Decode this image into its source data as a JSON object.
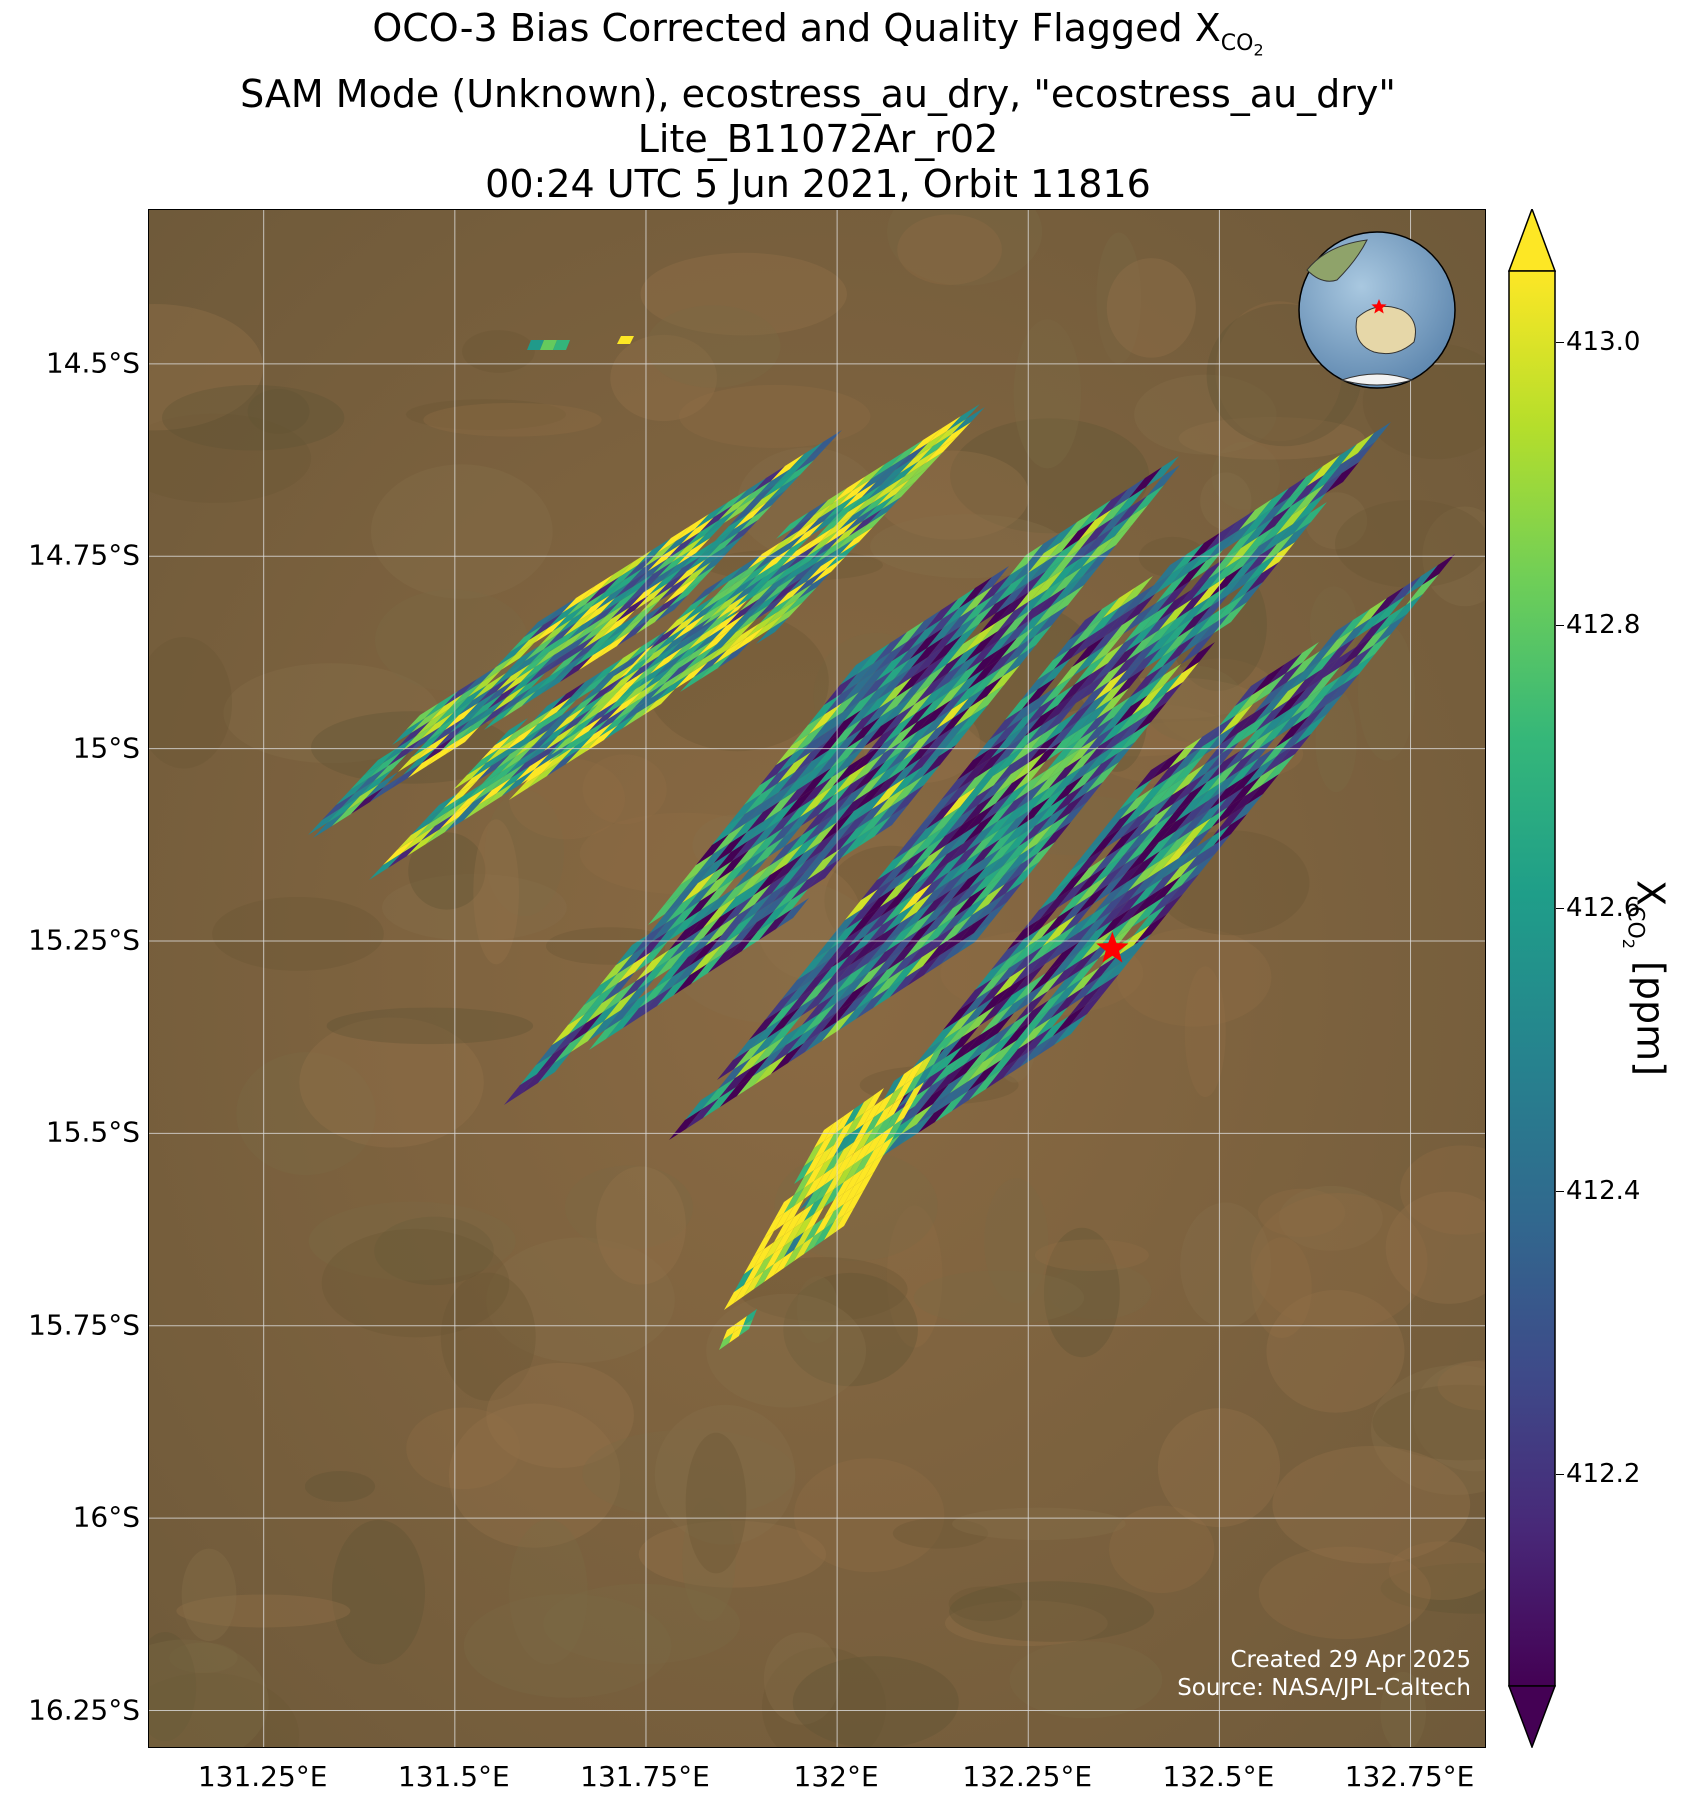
{
  "title": {
    "line1_prefix": "OCO-3 Bias Corrected and Quality Flagged X",
    "line1_sub": "CO",
    "line1_sub2": "2",
    "line2": "SAM Mode (Unknown), ecostress_au_dry, \"ecostress_au_dry\"",
    "line3": "Lite_B11072Ar_r02",
    "line4": "00:24 UTC 5 Jun 2021, Orbit 11816"
  },
  "map": {
    "lon_range": [
      131.1,
      132.85
    ],
    "lat_range": [
      -16.3,
      -14.3
    ],
    "lon_ticks": [
      "131.25°E",
      "131.5°E",
      "131.75°E",
      "132°E",
      "132.25°E",
      "132.5°E",
      "132.75°E"
    ],
    "lat_ticks": [
      "14.5°S",
      "14.75°S",
      "15°S",
      "15.25°S",
      "15.5°S",
      "15.75°S",
      "16°S",
      "16.25°S"
    ],
    "target_marker": {
      "lon": 132.36,
      "lat": -15.26,
      "color": "#ff0000",
      "icon": "star-icon"
    },
    "inset_globe": {
      "icon": "globe-icon",
      "marker_icon": "star-icon"
    },
    "colors": {
      "terrain": "#7d6440",
      "grid": "#dddddd"
    }
  },
  "colorbar": {
    "label_prefix": "X",
    "label_sub": "CO",
    "label_sub2": "2",
    "label_suffix": " [ppm]",
    "range": [
      412.05,
      413.05
    ],
    "ticks": [
      "412.2",
      "412.4",
      "412.6",
      "412.8",
      "413.0"
    ],
    "colormap": "viridis",
    "extend": "both"
  },
  "credits": {
    "line1": "Created 29 Apr 2025",
    "line2": "Source: NASA/JPL-Caltech"
  }
}
